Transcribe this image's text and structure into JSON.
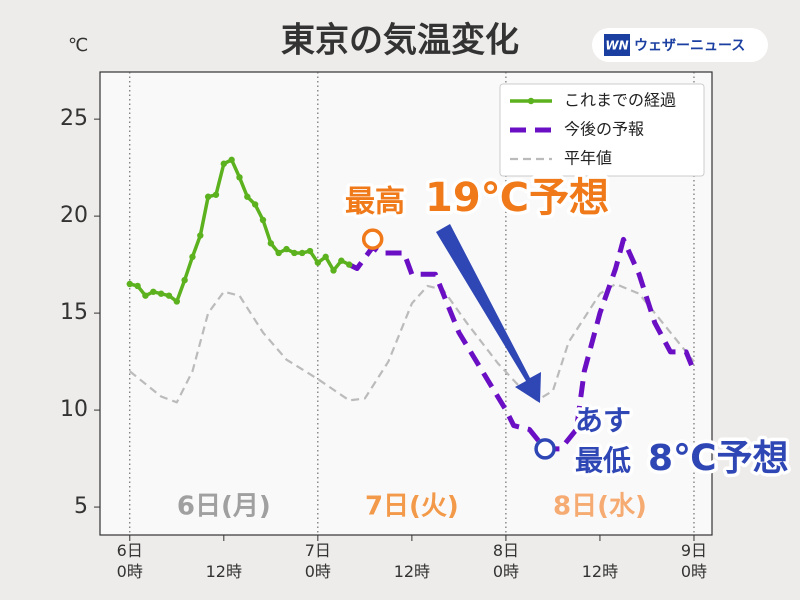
{
  "chart_data": {
    "type": "line",
    "title": "東京の気温変化",
    "y_unit": "℃",
    "logo_mark": "WN",
    "logo": "ウェザーニュース",
    "xlim": [
      -3.8,
      74.3
    ],
    "ylim": [
      3.56,
      27.43
    ],
    "xticks": [
      {
        "value": 0,
        "label": "6日\n0時"
      },
      {
        "value": 12,
        "label": "12時"
      },
      {
        "value": 24,
        "label": "7日\n0時"
      },
      {
        "value": 36,
        "label": "12時"
      },
      {
        "value": 48,
        "label": "8日\n0時"
      },
      {
        "value": 60,
        "label": "12時"
      },
      {
        "value": 72,
        "label": "9日\n0時"
      }
    ],
    "yticks": [
      5,
      10,
      15,
      20,
      25
    ],
    "legend": "upper right",
    "series": [
      {
        "name": "これまでの経過",
        "color": "#5cb21e",
        "style": "solid-dots",
        "x": [
          0,
          1,
          2,
          3,
          4,
          5,
          6,
          7,
          8,
          9,
          10,
          11,
          12,
          13,
          14,
          15,
          16,
          17,
          18,
          19,
          20,
          21,
          22,
          23,
          24,
          25,
          26,
          27,
          28
        ],
        "values": [
          16.5,
          16.4,
          15.9,
          16.1,
          16.0,
          15.9,
          15.6,
          16.7,
          17.9,
          19.0,
          21.0,
          21.1,
          22.7,
          22.9,
          22.0,
          21.0,
          20.6,
          19.8,
          18.6,
          18.1,
          18.3,
          18.1,
          18.1,
          18.2,
          17.6,
          17.9,
          17.2,
          17.7,
          17.5
        ]
      },
      {
        "name": "今後の予報",
        "color": "#6a0fc4",
        "style": "dash",
        "x": [
          28,
          29,
          31,
          32,
          33,
          35,
          36,
          39,
          42,
          45,
          48,
          49,
          51,
          53,
          55,
          57,
          58,
          60,
          62,
          63,
          65,
          67,
          69,
          71,
          72
        ],
        "values": [
          17.5,
          17.3,
          18.4,
          18.1,
          18.1,
          18.1,
          17.0,
          17.0,
          14.0,
          12.0,
          10.0,
          9.2,
          9.0,
          8.0,
          8.0,
          9.0,
          12.0,
          15.0,
          17.3,
          18.8,
          17.0,
          14.5,
          13.0,
          13.0,
          12.0
        ]
      },
      {
        "name": "平年値",
        "color": "#bbbbbb",
        "style": "thin-dash",
        "x": [
          0,
          4,
          6,
          8,
          10,
          12,
          14,
          17,
          20,
          24,
          28,
          30,
          33,
          36,
          38,
          40,
          43,
          47,
          50,
          52,
          54,
          56,
          60,
          62,
          65,
          68,
          72
        ],
        "values": [
          12.0,
          10.7,
          10.4,
          12.0,
          15.0,
          16.1,
          15.9,
          14.0,
          12.6,
          11.6,
          10.5,
          10.6,
          12.5,
          15.5,
          16.4,
          16.2,
          14.5,
          12.4,
          11.1,
          10.5,
          11.0,
          13.5,
          16.0,
          16.5,
          16.0,
          14.5,
          12.5
        ]
      }
    ],
    "day_labels": [
      {
        "x": 12,
        "text": "6日(月)",
        "color": "#a0a0a0"
      },
      {
        "x": 36,
        "text": "7日(火)",
        "color": "#f39a4a"
      },
      {
        "x": 60,
        "text": "8日(水)",
        "color": "#f5ab72"
      }
    ],
    "high_label": "最高",
    "high_value_label": "19℃予想",
    "low_day_label": "あす",
    "low_label": "最低",
    "low_value_label": "8℃予想"
  }
}
